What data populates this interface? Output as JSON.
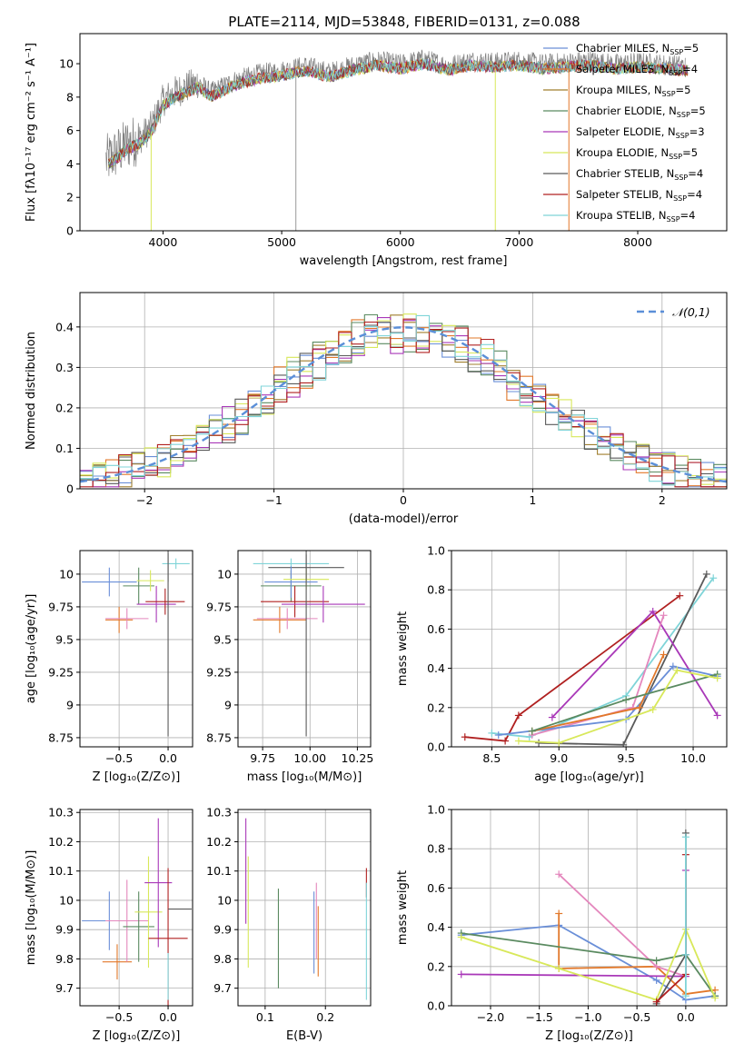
{
  "figure": {
    "title": "PLATE=2114, MJD=53848, FIBERID=0131, z=0.088"
  },
  "colors": {
    "c1": "#6a8fd8",
    "c2": "#e2782a",
    "c3": "#a07f2e",
    "c4": "#5a8a60",
    "c5": "#a938b8",
    "c6": "#d8e85a",
    "c7": "#5a5a5a",
    "c8": "#b02020",
    "c9": "#7fd4d8",
    "c10": "#e487bd",
    "c11": "#808080",
    "c12": "#3e5f3f"
  },
  "chart_data": [
    {
      "id": "spectrum",
      "type": "line",
      "title": "PLATE=2114, MJD=53848, FIBERID=0131, z=0.088",
      "xlabel": "wavelength [Angstrom, rest frame]",
      "ylabel": "Flux [fλ10⁻¹⁷ erg cm⁻² s⁻¹ A⁻¹]",
      "xlim": [
        3300,
        8750
      ],
      "ylim": [
        0,
        11.8
      ],
      "xticks": [
        4000,
        5000,
        6000,
        7000,
        8000
      ],
      "yticks": [
        0,
        2,
        4,
        6,
        8,
        10
      ],
      "legend_position": "upper-right",
      "data_series": {
        "name": "",
        "color": "#808080",
        "x": [
          3520,
          3600,
          3700,
          3800,
          3900,
          4000,
          4100,
          4200,
          4300,
          4400,
          4600,
          4800,
          5000,
          5200,
          5400,
          5600,
          5800,
          6000,
          6200,
          6400,
          6600,
          6800,
          7000,
          7200,
          7400,
          7600,
          7800,
          8000,
          8200,
          8400
        ],
        "y": [
          4.2,
          4.6,
          5.2,
          5.5,
          6.2,
          7.8,
          8.3,
          8.6,
          8.9,
          8.3,
          9.0,
          9.4,
          9.6,
          9.9,
          9.5,
          9.9,
          10.2,
          10.0,
          10.3,
          9.9,
          10.2,
          10.1,
          10.2,
          10.0,
          10.1,
          10.2,
          10.0,
          10.1,
          10.0,
          9.9
        ]
      },
      "models": [
        {
          "name": "Chabrier MILES, N_SSP=5",
          "color": "#6a8fd8"
        },
        {
          "name": "Salpeter MILES, N_SSP=4",
          "color": "#e2782a"
        },
        {
          "name": "Kroupa MILES, N_SSP=5",
          "color": "#a07f2e"
        },
        {
          "name": "Chabrier ELODIE, N_SSP=5",
          "color": "#5a8a60"
        },
        {
          "name": "Salpeter ELODIE, N_SSP=3",
          "color": "#a938b8"
        },
        {
          "name": "Kroupa ELODIE, N_SSP=5",
          "color": "#d8e85a"
        },
        {
          "name": "Chabrier STELIB, N_SSP=4",
          "color": "#5a5a5a"
        },
        {
          "name": "Salpeter STELIB, N_SSP=4",
          "color": "#b02020"
        },
        {
          "name": "Kroupa STELIB, N_SSP=4",
          "color": "#7fd4d8"
        }
      ],
      "legend_labels": [
        {
          "main": "Chabrier MILES, N",
          "sub": "SSP",
          "end": "=5"
        },
        {
          "main": "Salpeter MILES, N",
          "sub": "SSP",
          "end": "=4"
        },
        {
          "main": "Kroupa MILES, N",
          "sub": "SSP",
          "end": "=5"
        },
        {
          "main": "Chabrier ELODIE, N",
          "sub": "SSP",
          "end": "=5"
        },
        {
          "main": "Salpeter ELODIE, N",
          "sub": "SSP",
          "end": "=3"
        },
        {
          "main": "Kroupa ELODIE, N",
          "sub": "SSP",
          "end": "=5"
        },
        {
          "main": "Chabrier STELIB, N",
          "sub": "SSP",
          "end": "=4"
        },
        {
          "main": "Salpeter STELIB, N",
          "sub": "SSP",
          "end": "=4"
        },
        {
          "main": "Kroupa STELIB, N",
          "sub": "SSP",
          "end": "=4"
        }
      ],
      "model_dropouts": [
        {
          "series": "Kroupa ELODIE, N_SSP=5",
          "x": 3900
        },
        {
          "series": "Kroupa ELODIE, N_SSP=5",
          "x": 6800
        },
        {
          "series": "Salpeter MILES, N_SSP=4",
          "x": 7420
        },
        {
          "series": "data",
          "x": 5120
        }
      ]
    },
    {
      "id": "residuals",
      "type": "histogram",
      "xlabel": "(data-model)/error",
      "ylabel": "Normed distribution",
      "xlim": [
        -2.5,
        2.5
      ],
      "ylim": [
        0,
        0.485
      ],
      "xticks": [
        -2,
        -1,
        0,
        1,
        2
      ],
      "yticks": [
        0.0,
        0.1,
        0.2,
        0.3,
        0.4
      ],
      "legend_position": "upper-right",
      "legend_label": "𝒩(0,1)",
      "reference_curve": {
        "name": "𝒩(0,1)",
        "mean": 0,
        "sigma": 1,
        "color": "#5b8fd8",
        "style": "dashed"
      },
      "bins": {
        "start": -2.5,
        "width": 0.1,
        "count": 50
      },
      "noise_amplitude": 0.045
    },
    {
      "id": "age_vs_Z",
      "type": "errorbar",
      "xlabel": "Z [log₁₀(Z/Z⊙)]",
      "ylabel": "age  [log₁₀(age/yr)]",
      "xlim": [
        -0.9,
        0.25
      ],
      "ylim": [
        8.68,
        10.18
      ],
      "xticks": [
        -0.5,
        0.0
      ],
      "xticklabels": [
        "−0.5",
        "0.0"
      ],
      "yticks": [
        8.75,
        9.0,
        9.25,
        9.5,
        9.75,
        10.0
      ],
      "points": [
        {
          "color": "#6a8fd8",
          "x": -0.6,
          "xerr": 0.28,
          "y": 9.94,
          "yerr": 0.11
        },
        {
          "color": "#e2782a",
          "x": -0.5,
          "xerr": 0.14,
          "y": 9.65,
          "yerr": 0.1
        },
        {
          "color": "#e487bd",
          "x": -0.42,
          "xerr": 0.22,
          "y": 9.66,
          "yerr": 0.08
        },
        {
          "color": "#5a8a60",
          "x": -0.3,
          "xerr": 0.16,
          "y": 9.91,
          "yerr": 0.14
        },
        {
          "color": "#d8e85a",
          "x": -0.18,
          "xerr": 0.14,
          "y": 9.95,
          "yerr": 0.08
        },
        {
          "color": "#a938b8",
          "x": -0.12,
          "xerr": 0.2,
          "y": 9.77,
          "yerr": 0.14
        },
        {
          "color": "#b02020",
          "x": -0.03,
          "xerr": 0.2,
          "y": 9.79,
          "yerr": 0.1
        },
        {
          "color": "#5a5a5a",
          "x": 0.0,
          "xerr": 0.0,
          "y": 9.5,
          "yerr": 0.74
        },
        {
          "color": "#7fd4d8",
          "x": 0.08,
          "xerr": 0.14,
          "y": 10.08,
          "yerr": 0.04
        },
        {
          "color": "#5a5a5a",
          "x": 0.0,
          "xerr": 0.0,
          "y": 10.05,
          "yerr": 0.11
        }
      ]
    },
    {
      "id": "age_vs_mass",
      "type": "errorbar",
      "xlabel": "mass [log₁₀(M/M⊙)]",
      "ylabel": "",
      "xlim": [
        9.62,
        10.32
      ],
      "ylim": [
        8.68,
        10.18
      ],
      "xticks": [
        9.75,
        10.0,
        10.25
      ],
      "xticklabels": [
        "9.75",
        "10.00",
        "10.25"
      ],
      "yticks": [
        8.75,
        9.0,
        9.25,
        9.5,
        9.75,
        10.0
      ],
      "points": [
        {
          "color": "#7fd4d8",
          "x": 9.9,
          "xerr": 0.2,
          "y": 10.08,
          "yerr": 0.04
        },
        {
          "color": "#5a5a5a",
          "x": 9.98,
          "xerr": 0.2,
          "y": 10.05,
          "yerr": 0.1
        },
        {
          "color": "#5a8a60",
          "x": 9.9,
          "xerr": 0.16,
          "y": 9.91,
          "yerr": 0.12
        },
        {
          "color": "#6a8fd8",
          "x": 9.9,
          "xerr": 0.14,
          "y": 9.94,
          "yerr": 0.12
        },
        {
          "color": "#d8e85a",
          "x": 9.98,
          "xerr": 0.12,
          "y": 9.96,
          "yerr": 0.08
        },
        {
          "color": "#b02020",
          "x": 9.92,
          "xerr": 0.18,
          "y": 9.79,
          "yerr": 0.12
        },
        {
          "color": "#a938b8",
          "x": 10.07,
          "xerr": 0.22,
          "y": 9.77,
          "yerr": 0.14
        },
        {
          "color": "#e2782a",
          "x": 9.84,
          "xerr": 0.14,
          "y": 9.65,
          "yerr": 0.1
        },
        {
          "color": "#e487bd",
          "x": 9.88,
          "xerr": 0.16,
          "y": 9.66,
          "yerr": 0.08
        },
        {
          "color": "#5a5a5a",
          "x": 9.98,
          "xerr": 0.0,
          "y": 9.5,
          "yerr": 0.74
        }
      ]
    },
    {
      "id": "weight_vs_age",
      "type": "line",
      "xlabel": "age  [log₁₀(age/yr)]",
      "ylabel": "mass weight",
      "xlim": [
        8.2,
        10.25
      ],
      "ylim": [
        0,
        1
      ],
      "xticks": [
        8.5,
        9.0,
        9.5,
        10.0
      ],
      "xticklabels": [
        "8.5",
        "9.0",
        "9.5",
        "10.0"
      ],
      "yticks": [
        0,
        0.2,
        0.4,
        0.6,
        0.8,
        1.0
      ],
      "yticklabels": [
        "0.0",
        "0.2",
        "0.4",
        "0.6",
        "0.8",
        "1.0"
      ],
      "series": [
        {
          "color": "#b02020",
          "x": [
            8.3,
            8.6,
            8.7,
            9.9
          ],
          "y": [
            0.05,
            0.03,
            0.16,
            0.77
          ]
        },
        {
          "color": "#7fd4d8",
          "x": [
            8.5,
            8.78,
            9.5,
            10.15
          ],
          "y": [
            0.07,
            0.05,
            0.26,
            0.86
          ]
        },
        {
          "color": "#5a5a5a",
          "x": [
            8.85,
            9.48,
            10.1
          ],
          "y": [
            0.02,
            0.01,
            0.88
          ]
        },
        {
          "color": "#a938b8",
          "x": [
            8.95,
            9.7,
            10.18
          ],
          "y": [
            0.15,
            0.69,
            0.16
          ]
        },
        {
          "color": "#e487bd",
          "x": [
            8.8,
            9.55,
            9.78
          ],
          "y": [
            0.06,
            0.2,
            0.67
          ]
        },
        {
          "color": "#6a8fd8",
          "x": [
            8.55,
            9.5,
            9.85,
            10.18
          ],
          "y": [
            0.06,
            0.14,
            0.41,
            0.36
          ]
        },
        {
          "color": "#e2782a",
          "x": [
            8.8,
            9.6,
            9.78
          ],
          "y": [
            0.08,
            0.2,
            0.47
          ]
        },
        {
          "color": "#5a8a60",
          "x": [
            8.8,
            9.5,
            10.18
          ],
          "y": [
            0.08,
            0.24,
            0.37
          ]
        },
        {
          "color": "#d8e85a",
          "x": [
            8.7,
            9.0,
            9.7,
            9.88,
            10.18
          ],
          "y": [
            0.03,
            0.02,
            0.19,
            0.39,
            0.35
          ]
        }
      ]
    },
    {
      "id": "mass_vs_Z",
      "type": "errorbar",
      "xlabel": "Z [log₁₀(Z/Z⊙)]",
      "ylabel": "mass [log₁₀(M/M⊙)]",
      "xlim": [
        -0.9,
        0.25
      ],
      "ylim": [
        9.64,
        10.31
      ],
      "xticks": [
        -0.5,
        0.0
      ],
      "xticklabels": [
        "−0.5",
        "0.0"
      ],
      "yticks": [
        9.7,
        9.8,
        9.9,
        10.0,
        10.1,
        10.2,
        10.3
      ],
      "points": [
        {
          "color": "#6a8fd8",
          "x": -0.6,
          "xerr": 0.28,
          "y": 9.93,
          "yerr": 0.1
        },
        {
          "color": "#e2782a",
          "x": -0.52,
          "xerr": 0.15,
          "y": 9.79,
          "yerr": 0.06
        },
        {
          "color": "#e487bd",
          "x": -0.42,
          "xerr": 0.22,
          "y": 9.93,
          "yerr": 0.14
        },
        {
          "color": "#5a8a60",
          "x": -0.3,
          "xerr": 0.16,
          "y": 9.91,
          "yerr": 0.12
        },
        {
          "color": "#d8e85a",
          "x": -0.2,
          "xerr": 0.14,
          "y": 9.96,
          "yerr": 0.19
        },
        {
          "color": "#a938b8",
          "x": -0.1,
          "xerr": 0.14,
          "y": 10.06,
          "yerr": 0.22
        },
        {
          "color": "#b02020",
          "x": 0.0,
          "xerr": 0.2,
          "y": 9.87,
          "yerr": 0.24
        },
        {
          "color": "#5a5a5a",
          "x": 0.12,
          "xerr": 0.12,
          "y": 9.97,
          "yerr": 0.0
        },
        {
          "color": "#7fd4d8",
          "x": 0.0,
          "xerr": 0.0,
          "y": 9.74,
          "yerr": 0.08
        }
      ]
    },
    {
      "id": "mass_vs_ebv",
      "type": "errorbar",
      "xlabel": "E(B-V)",
      "ylabel": "",
      "xlim": [
        0.055,
        0.275
      ],
      "ylim": [
        9.64,
        10.31
      ],
      "xticks": [
        0.1,
        0.2
      ],
      "xticklabels": [
        "0.1",
        "0.2"
      ],
      "yticks": [
        9.7,
        9.8,
        9.9,
        10.0,
        10.1,
        10.2,
        10.3
      ],
      "points": [
        {
          "color": "#a938b8",
          "x": 0.068,
          "y": 10.1,
          "yerr": 0.18
        },
        {
          "color": "#d8e85a",
          "x": 0.072,
          "y": 9.96,
          "yerr": 0.19
        },
        {
          "color": "#5a8a60",
          "x": 0.122,
          "y": 9.87,
          "yerr": 0.17
        },
        {
          "color": "#6a8fd8",
          "x": 0.181,
          "y": 9.89,
          "yerr": 0.14
        },
        {
          "color": "#e487bd",
          "x": 0.185,
          "y": 9.93,
          "yerr": 0.13
        },
        {
          "color": "#e2782a",
          "x": 0.188,
          "y": 9.86,
          "yerr": 0.12
        },
        {
          "color": "#b02020",
          "x": 0.268,
          "y": 10.06,
          "yerr": 0.05
        },
        {
          "color": "#7fd4d8",
          "x": 0.268,
          "y": 9.86,
          "yerr": 0.2
        }
      ]
    },
    {
      "id": "weight_vs_Z",
      "type": "line",
      "xlabel": "Z [log₁₀(Z/Z⊙)]",
      "ylabel": "mass weight",
      "xlim": [
        -2.4,
        0.42
      ],
      "ylim": [
        0,
        1
      ],
      "xticks": [
        -2.0,
        -1.5,
        -1.0,
        -0.5,
        0.0
      ],
      "xticklabels": [
        "−2.0",
        "−1.5",
        "−1.0",
        "−0.5",
        "0.0"
      ],
      "yticks": [
        0,
        0.2,
        0.4,
        0.6,
        0.8,
        1.0
      ],
      "yticklabels": [
        "0.0",
        "0.2",
        "0.4",
        "0.6",
        "0.8",
        "1.0"
      ],
      "series": [
        {
          "color": "#6a8fd8",
          "x": [
            -2.3,
            -1.3,
            -0.3,
            0.0,
            0.3
          ],
          "y": [
            0.36,
            0.41,
            0.13,
            0.03,
            0.05
          ]
        },
        {
          "color": "#e2782a",
          "x": [
            -1.3,
            -1.3,
            -0.3,
            0.0,
            0.3
          ],
          "y": [
            0.47,
            0.19,
            0.2,
            0.06,
            0.08
          ]
        },
        {
          "color": "#e487bd",
          "x": [
            -1.3,
            -0.3,
            0.0
          ],
          "y": [
            0.67,
            0.2,
            0.15
          ]
        },
        {
          "color": "#5a8a60",
          "x": [
            -2.3,
            -0.3,
            0.0,
            0.3
          ],
          "y": [
            0.37,
            0.23,
            0.26,
            0.05
          ]
        },
        {
          "color": "#a938b8",
          "x": [
            -2.3,
            0.0,
            0.0
          ],
          "y": [
            0.16,
            0.15,
            0.69
          ]
        },
        {
          "color": "#d8e85a",
          "x": [
            -2.3,
            -1.3,
            -0.3,
            0.0,
            0.3
          ],
          "y": [
            0.35,
            0.19,
            0.03,
            0.39,
            0.04
          ]
        },
        {
          "color": "#5a5a5a",
          "x": [
            -0.3,
            0.0,
            0.0
          ],
          "y": [
            0.01,
            0.26,
            0.88
          ]
        },
        {
          "color": "#b02020",
          "x": [
            -0.3,
            0.0,
            0.0
          ],
          "y": [
            0.02,
            0.16,
            0.77
          ]
        },
        {
          "color": "#7fd4d8",
          "x": [
            0.0,
            0.0,
            0.0
          ],
          "y": [
            0.05,
            0.26,
            0.86
          ]
        }
      ]
    }
  ]
}
